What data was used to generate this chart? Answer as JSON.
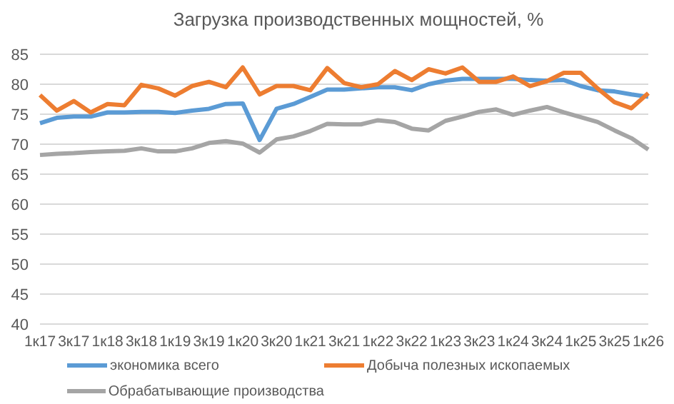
{
  "chart_data": {
    "type": "line",
    "title": "Загрузка производственных мощностей, %",
    "categories": [
      "1к17",
      null,
      "3к17",
      null,
      "1к18",
      null,
      "3к18",
      null,
      "1к19",
      null,
      "3к19",
      null,
      "1к20",
      null,
      "3к20",
      null,
      "1к21",
      null,
      "3к21",
      null,
      "1к22",
      null,
      "3к22",
      null,
      "1к23",
      null,
      "3к23",
      null,
      "1к24",
      null,
      "3к24",
      null,
      "1к25",
      null,
      "3к25",
      null,
      "1к26"
    ],
    "series": [
      {
        "name": "экономика всего",
        "color": "#5b9bd5",
        "values": [
          73.5,
          74.4,
          74.6,
          74.6,
          75.3,
          75.3,
          75.4,
          75.4,
          75.2,
          75.6,
          75.9,
          76.7,
          76.8,
          70.7,
          75.9,
          76.7,
          77.9,
          79.1,
          79.1,
          79.3,
          79.5,
          79.5,
          79.0,
          80.0,
          80.6,
          80.9,
          80.9,
          80.9,
          80.9,
          80.7,
          80.6,
          80.7,
          79.7,
          79.0,
          78.8,
          78.3,
          77.9
        ]
      },
      {
        "name": "Добыча полезных ископаемых",
        "color": "#ed7d31",
        "values": [
          78.2,
          75.6,
          77.2,
          75.3,
          76.7,
          76.5,
          79.9,
          79.3,
          78.1,
          79.7,
          80.4,
          79.5,
          82.8,
          78.3,
          79.7,
          79.7,
          79.0,
          82.7,
          80.2,
          79.5,
          80.0,
          82.2,
          80.7,
          82.5,
          81.8,
          82.8,
          80.4,
          80.4,
          81.3,
          79.7,
          80.5,
          81.9,
          81.9,
          79.3,
          77.0,
          76.0,
          78.5
        ]
      },
      {
        "name": "Обрабатывающие производства",
        "color": "#a5a5a5",
        "values": [
          68.2,
          68.4,
          68.5,
          68.7,
          68.8,
          68.9,
          69.3,
          68.8,
          68.8,
          69.3,
          70.2,
          70.5,
          70.1,
          68.6,
          70.8,
          71.3,
          72.2,
          73.4,
          73.3,
          73.3,
          74.0,
          73.7,
          72.6,
          72.3,
          73.9,
          74.6,
          75.4,
          75.8,
          74.9,
          75.6,
          76.2,
          75.3,
          74.5,
          73.7,
          72.3,
          71.0,
          69.1
        ]
      }
    ],
    "ylim": [
      40,
      85
    ],
    "yticks": [
      40,
      45,
      50,
      55,
      60,
      65,
      70,
      75,
      80,
      85
    ],
    "grid": "y",
    "legend": "bottom",
    "marker": "none",
    "line_style": "solid"
  }
}
